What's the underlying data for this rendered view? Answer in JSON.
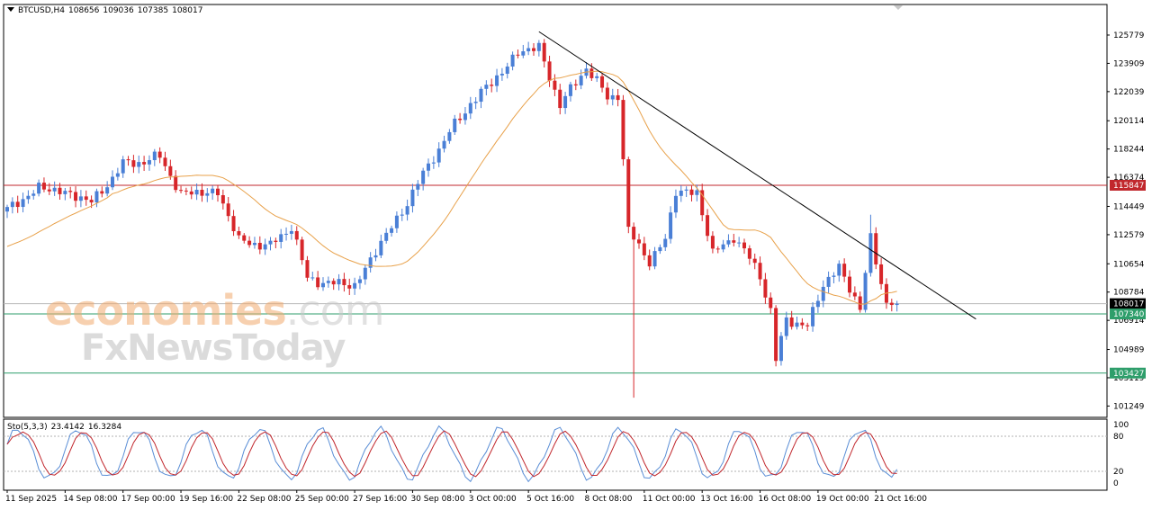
{
  "header": {
    "symbol": "BTCUSD,H4",
    "open": "108656",
    "high": "109036",
    "low": "107385",
    "close": "108017"
  },
  "sto_header": {
    "name": "Sto(5,3,3)",
    "k": "23.4142",
    "d": "16.3284"
  },
  "watermark": {
    "brand_main": "economies",
    "brand_suffix": ".com",
    "brand_secondary": "FxNewsToday"
  },
  "colors": {
    "bull": "#4a7fd6",
    "bear": "#d7262a",
    "ma": "#e8a14a",
    "resistance": "#c1272d",
    "support": "#2e9e6b",
    "trendline": "#000000",
    "sto_k": "#5a8ed6",
    "sto_d": "#c1272d"
  },
  "chart_data": [
    {
      "type": "candlestick",
      "symbol": "BTCUSD",
      "timeframe": "H4",
      "ylim": [
        100500,
        127800
      ],
      "y_ticks": [
        "125779",
        "123909",
        "122039",
        "120114",
        "118244",
        "116374",
        "114449",
        "112579",
        "110654",
        "108784",
        "106914",
        "104989",
        "103119",
        "101249"
      ],
      "x_labels": [
        "11 Sep 2025",
        "14 Sep 08:00",
        "17 Sep 00:00",
        "19 Sep 16:00",
        "22 Sep 08:00",
        "25 Sep 00:00",
        "27 Sep 16:00",
        "30 Sep 08:00",
        "3 Oct 00:00",
        "5 Oct 16:00",
        "8 Oct 08:00",
        "11 Oct 00:00",
        "13 Oct 16:00",
        "16 Oct 08:00",
        "19 Oct 00:00",
        "21 Oct 16:00"
      ],
      "price_labels": [
        {
          "value": 115847,
          "text": "115847",
          "kind": "resistance"
        },
        {
          "value": 108017,
          "text": "108017",
          "kind": "current"
        },
        {
          "value": 107340,
          "text": "107340",
          "kind": "support"
        },
        {
          "value": 103427,
          "text": "103427",
          "kind": "support"
        }
      ],
      "horizontal_lines": [
        115847,
        107340,
        103427
      ],
      "trendline": {
        "from": {
          "bar": 101,
          "price": 126000
        },
        "to": {
          "bar": 184,
          "price": 107000
        }
      },
      "moving_average": "orange line (trend filter)",
      "keypoints": [
        {
          "bar": 0,
          "price": 114200
        },
        {
          "bar": 6,
          "price": 115700
        },
        {
          "bar": 12,
          "price": 115300
        },
        {
          "bar": 16,
          "price": 114700
        },
        {
          "bar": 22,
          "price": 117200
        },
        {
          "bar": 29,
          "price": 117700
        },
        {
          "bar": 33,
          "price": 115300
        },
        {
          "bar": 40,
          "price": 115400
        },
        {
          "bar": 44,
          "price": 112200
        },
        {
          "bar": 50,
          "price": 111800
        },
        {
          "bar": 54,
          "price": 113200
        },
        {
          "bar": 57,
          "price": 109600
        },
        {
          "bar": 66,
          "price": 109200
        },
        {
          "bar": 70,
          "price": 111500
        },
        {
          "bar": 76,
          "price": 114700
        },
        {
          "bar": 81,
          "price": 117800
        },
        {
          "bar": 88,
          "price": 121300
        },
        {
          "bar": 92,
          "price": 122600
        },
        {
          "bar": 97,
          "price": 124600
        },
        {
          "bar": 101,
          "price": 125000
        },
        {
          "bar": 105,
          "price": 121100
        },
        {
          "bar": 110,
          "price": 123700
        },
        {
          "bar": 114,
          "price": 121600
        },
        {
          "bar": 116,
          "price": 121900
        },
        {
          "bar": 117,
          "price": 117600
        },
        {
          "bar": 118,
          "price": 112800
        },
        {
          "bar": 122,
          "price": 110800
        },
        {
          "bar": 125,
          "price": 112300
        },
        {
          "bar": 127,
          "price": 115400
        },
        {
          "bar": 131,
          "price": 115400
        },
        {
          "bar": 134,
          "price": 111300
        },
        {
          "bar": 138,
          "price": 112500
        },
        {
          "bar": 143,
          "price": 109900
        },
        {
          "bar": 145,
          "price": 107600
        },
        {
          "bar": 146,
          "price": 104300
        },
        {
          "bar": 148,
          "price": 106900
        },
        {
          "bar": 152,
          "price": 106600
        },
        {
          "bar": 155,
          "price": 109200
        },
        {
          "bar": 158,
          "price": 110500
        },
        {
          "bar": 162,
          "price": 107600
        },
        {
          "bar": 164,
          "price": 112400
        },
        {
          "bar": 167,
          "price": 108017
        }
      ],
      "spikes": [
        {
          "bar": 119,
          "low": 101800
        },
        {
          "bar": 164,
          "high": 113900
        }
      ]
    },
    {
      "type": "line",
      "name": "Sto(5,3,3)",
      "ylim": [
        0,
        100
      ],
      "y_ticks": [
        "100",
        "80",
        "20",
        "0"
      ],
      "levels": [
        80,
        20
      ],
      "series": [
        {
          "name": "%K",
          "last": 23.4142
        },
        {
          "name": "%D",
          "last": 16.3284
        }
      ]
    }
  ]
}
